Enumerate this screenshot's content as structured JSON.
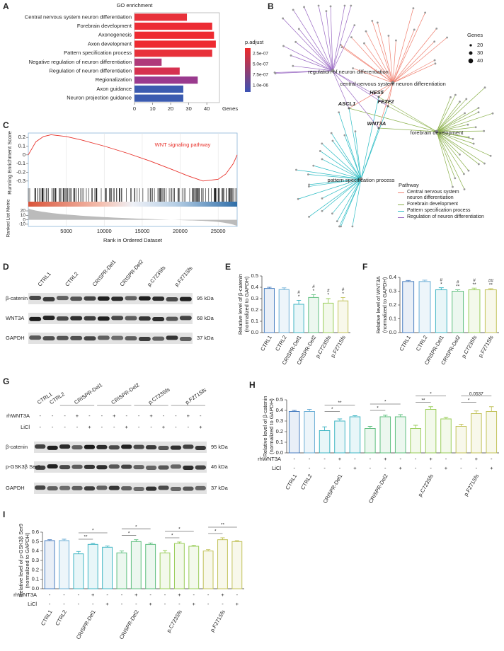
{
  "panel_labels": [
    "A",
    "B",
    "C",
    "D",
    "E",
    "F",
    "G",
    "H",
    "I"
  ],
  "chart_data": [
    {
      "type": "hbar",
      "title": "GO enrichment",
      "categories": [
        "Central nervous system neuron differentiation",
        "Forebrain development",
        "Axonogenesis",
        "Axon development",
        "Pattern specification process",
        "Negative regulation of neuron differentiation",
        "Regulation of neuron differentiation",
        "Regionalization",
        "Axon guidance",
        "Neuron projection guidance"
      ],
      "values": [
        29,
        43,
        44,
        45,
        43,
        15,
        25,
        35,
        27,
        27
      ],
      "colors": [
        "#e8313a",
        "#ec2c34",
        "#ee2a30",
        "#ee2a30",
        "#e8313a",
        "#b03a7a",
        "#d63150",
        "#9a3a8e",
        "#3b5bb0",
        "#3b5bb0"
      ],
      "xlim": [
        0,
        47
      ],
      "xticks": [
        0,
        10,
        20,
        30,
        40
      ],
      "xlabel": "Genes",
      "legend_title": "p.adjust",
      "legend_labels": [
        "2.5e-07",
        "5.0e-07",
        "7.5e-07",
        "1.0e-06"
      ],
      "legend_colors": [
        "#ee2a2a",
        "#3b52b4"
      ]
    },
    {
      "type": "gsea",
      "title": "WNT signaling pathway",
      "color": "#e8312a",
      "ylabel": "Running Enrichment Score",
      "xlabel": "Rank in Ordered Dataset",
      "metric_label": "Ranked List Metric",
      "x": [
        0,
        1000,
        2000,
        3000,
        4000,
        5000,
        7000,
        10000,
        13000,
        16000,
        19000,
        21000,
        23000,
        25000,
        26000,
        27000,
        27500
      ],
      "values": [
        0,
        0.15,
        0.21,
        0.23,
        0.22,
        0.21,
        0.17,
        0.1,
        0.02,
        -0.07,
        -0.17,
        -0.24,
        -0.3,
        -0.28,
        -0.22,
        -0.1,
        0
      ],
      "xlim": [
        0,
        27500
      ],
      "xticks": [
        5000,
        10000,
        15000,
        20000,
        25000
      ],
      "ylim": [
        -0.35,
        0.25
      ],
      "yticks": [
        0.2,
        0.1,
        0,
        -0.1,
        -0.2,
        -0.3
      ],
      "metric_ylim": [
        -15,
        28
      ],
      "metric_yticks": [
        20,
        10,
        0,
        -10
      ]
    },
    {
      "type": "vbar",
      "ylabel": [
        "Relative level of β-catenin",
        "(normalized to GAPDH)"
      ],
      "categories": [
        "CTRL1",
        "CTRL2",
        "CRISPR-Del1",
        "CRISPR-Del2",
        "p.C723Sfs",
        "p.F271Sfs"
      ],
      "values": [
        0.39,
        0.38,
        0.25,
        0.31,
        0.26,
        0.28
      ],
      "errors": [
        0.01,
        0.015,
        0.035,
        0.025,
        0.04,
        0.03
      ],
      "colors": [
        "#4a7fc1",
        "#6baed6",
        "#41b6c4",
        "#5fbf7f",
        "#9acd5a",
        "#c2c25a"
      ],
      "marks": [
        null,
        null,
        [
          "#",
          "*"
        ],
        [
          "#",
          "*"
        ],
        [
          "#",
          "*"
        ],
        [
          "#",
          "*"
        ]
      ],
      "ylim": [
        0,
        0.5
      ],
      "yticks": [
        {
          "value": 0,
          "label": "0.0"
        },
        0.1,
        0.2,
        0.3,
        0.4,
        0.5
      ]
    },
    {
      "type": "vbar",
      "ylabel": [
        "Relative level of WNT3A",
        "(normalized to GAPDH)"
      ],
      "categories": [
        "CTRL1",
        "CTRL2",
        "CRISPR-Del1",
        "CRISPR-Del2",
        "p.C723Sfs",
        "p.F271Sfs"
      ],
      "values": [
        0.37,
        0.37,
        0.31,
        0.3,
        0.31,
        0.31
      ],
      "errors": [
        0.008,
        0.01,
        0.015,
        0.01,
        0.012,
        0.008
      ],
      "colors": [
        "#4a7fc1",
        "#6baed6",
        "#41b6c4",
        "#5fbf7f",
        "#9acd5a",
        "#c2c25a"
      ],
      "marks": [
        null,
        null,
        [
          "#",
          "*"
        ],
        [
          "#",
          "**"
        ],
        [
          "#",
          "**"
        ],
        [
          "##",
          "**"
        ]
      ],
      "ylim": [
        0,
        0.4
      ],
      "yticks": [
        {
          "value": 0,
          "label": "0.0"
        },
        0.1,
        0.2,
        0.3,
        0.4
      ]
    },
    {
      "type": "vbar",
      "ylabel": [
        "Relative level of β-catenin",
        "(normalized to GAPDH)"
      ],
      "categories": [
        "CTRL1",
        "CTRL2",
        null,
        "CRISPR-Del1",
        null,
        null,
        "CRISPR-Del2",
        null,
        null,
        "p.C723Sfs",
        null,
        null,
        "p.F271Sfs",
        null
      ],
      "values": [
        0.39,
        0.39,
        0.21,
        0.3,
        0.34,
        0.23,
        0.34,
        0.34,
        0.23,
        0.41,
        0.32,
        0.25,
        0.37,
        0.39
      ],
      "errors": [
        0.01,
        0.02,
        0.035,
        0.02,
        0.01,
        0.02,
        0.015,
        0.02,
        0.03,
        0.025,
        0.015,
        0.02,
        0.025,
        0.045
      ],
      "colors": [
        "#4a7fc1",
        "#6baed6",
        "#41b6c4",
        "#41b6c4",
        "#41b6c4",
        "#5fbf7f",
        "#5fbf7f",
        "#5fbf7f",
        "#9acd5a",
        "#9acd5a",
        "#9acd5a",
        "#c2c25a",
        "#c2c25a",
        "#c2c25a"
      ],
      "treatments": [
        {
          "name": "rhWNT3A",
          "values": [
            "-",
            "-",
            "-",
            "+",
            "-",
            "-",
            "+",
            "-",
            "-",
            "+",
            "-",
            "-",
            "+",
            "-"
          ]
        },
        {
          "name": "LiCl",
          "values": [
            "-",
            "-",
            "-",
            "-",
            "+",
            "-",
            "-",
            "+",
            "-",
            "-",
            "+",
            "-",
            "-",
            "+"
          ]
        }
      ],
      "comparisons": [
        {
          "from": 2,
          "to": 3,
          "label": "*"
        },
        {
          "from": 2,
          "to": 4,
          "label": "**"
        },
        {
          "from": 5,
          "to": 6,
          "label": "*"
        },
        {
          "from": 5,
          "to": 7,
          "label": "*"
        },
        {
          "from": 8,
          "to": 9,
          "label": "**"
        },
        {
          "from": 8,
          "to": 10,
          "label": "*"
        },
        {
          "from": 11,
          "to": 12,
          "label": "*"
        },
        {
          "from": 11,
          "to": 13,
          "label": "0.0537"
        }
      ],
      "ylim": [
        0,
        0.5
      ],
      "yticks": [
        {
          "value": 0,
          "label": "0.0"
        },
        0.1,
        0.2,
        0.3,
        0.4,
        0.5
      ]
    },
    {
      "type": "vbar",
      "ylabel": [
        "Relative level of p-GSK3β Ser9",
        "(normalized to GAPDH)"
      ],
      "categories": [
        "CTRL1",
        "CTRL2",
        null,
        "CRISPR-Del1",
        null,
        null,
        "CRISPR-Del2",
        null,
        null,
        "p.C723Sfs",
        null,
        null,
        "p.F271Sfs",
        null
      ],
      "values": [
        0.51,
        0.51,
        0.37,
        0.47,
        0.44,
        0.38,
        0.5,
        0.47,
        0.38,
        0.48,
        0.45,
        0.4,
        0.52,
        0.5
      ],
      "errors": [
        0.01,
        0.015,
        0.025,
        0.01,
        0.012,
        0.02,
        0.02,
        0.015,
        0.025,
        0.015,
        0.01,
        0.015,
        0.02,
        0.01
      ],
      "colors": [
        "#4a7fc1",
        "#6baed6",
        "#41b6c4",
        "#41b6c4",
        "#41b6c4",
        "#5fbf7f",
        "#5fbf7f",
        "#5fbf7f",
        "#9acd5a",
        "#9acd5a",
        "#9acd5a",
        "#c2c25a",
        "#c2c25a",
        "#c2c25a"
      ],
      "treatments": [
        {
          "name": "rhWNT3A",
          "values": [
            "-",
            "-",
            "-",
            "+",
            "-",
            "-",
            "+",
            "-",
            "-",
            "+",
            "-",
            "-",
            "+",
            "-"
          ]
        },
        {
          "name": "LiCl",
          "values": [
            "-",
            "-",
            "-",
            "-",
            "+",
            "-",
            "-",
            "+",
            "-",
            "-",
            "+",
            "-",
            "-",
            "+"
          ]
        }
      ],
      "comparisons": [
        {
          "from": 2,
          "to": 3,
          "label": "**"
        },
        {
          "from": 2,
          "to": 4,
          "label": "*"
        },
        {
          "from": 5,
          "to": 6,
          "label": "*"
        },
        {
          "from": 5,
          "to": 7,
          "label": "*"
        },
        {
          "from": 8,
          "to": 9,
          "label": "*"
        },
        {
          "from": 8,
          "to": 10,
          "label": "*"
        },
        {
          "from": 11,
          "to": 12,
          "label": "*"
        },
        {
          "from": 11,
          "to": 13,
          "label": "**"
        }
      ],
      "ylim": [
        0,
        0.6
      ],
      "yticks": [
        {
          "value": 0,
          "label": "0.0"
        },
        0.1,
        0.2,
        0.3,
        0.4,
        0.5,
        0.6
      ]
    }
  ],
  "network": {
    "hubs": [
      "central nervous system neuron differentiation",
      "forebrain development",
      "pattern specification process",
      "regulation of neuron differentiation"
    ],
    "genes": [
      "HES5",
      "ASCL1",
      "FEZF2",
      "WNT3A"
    ],
    "size_legend": {
      "title": "Genes",
      "sizes": [
        20,
        30,
        40
      ]
    },
    "pathway_legend": {
      "title": "Pathway",
      "entries": [
        {
          "name": "Central nervous system neuron differentiation",
          "color": "#f08070"
        },
        {
          "name": "Forebrain development",
          "color": "#8ab04a"
        },
        {
          "name": "Pattern specification process",
          "color": "#2bbcc4"
        },
        {
          "name": "Regulation of neuron differentiation",
          "color": "#9b6bc4"
        }
      ]
    }
  },
  "blot_d": {
    "samples": [
      "CTRL1",
      "CTRL2",
      "CRISPR-Del1",
      "CRISPR-Del2",
      "p.C723Sfs",
      "p.F271Sfs"
    ],
    "rows": [
      {
        "name": "β-catenin",
        "size": "95 kDa"
      },
      {
        "name": "WNT3A",
        "size": "68 kDa"
      },
      {
        "name": "GAPDH",
        "size": "37 kDa"
      }
    ]
  },
  "blot_g": {
    "samples": [
      "CTRL1",
      "CTRL2",
      "CRISPR-Del1",
      "CRISPR-Del2",
      "p.C723Sfs",
      "p.F271Sfs"
    ],
    "treatments": [
      {
        "name": "rhWNT3A",
        "values": [
          "-",
          "-",
          "-",
          "+",
          "-",
          "-",
          "+",
          "-",
          "-",
          "+",
          "-",
          "-",
          "+",
          "-"
        ]
      },
      {
        "name": "LiCl",
        "values": [
          "-",
          "-",
          "-",
          "-",
          "+",
          "-",
          "-",
          "+",
          "-",
          "-",
          "+",
          "-",
          "-",
          "+"
        ]
      }
    ],
    "rows": [
      {
        "name": "β-catenin",
        "size": "95 kDa"
      },
      {
        "name": "p-GSK3β Ser9",
        "size": "46 kDa"
      },
      {
        "name": "GAPDH",
        "size": "37 kDa"
      }
    ]
  }
}
